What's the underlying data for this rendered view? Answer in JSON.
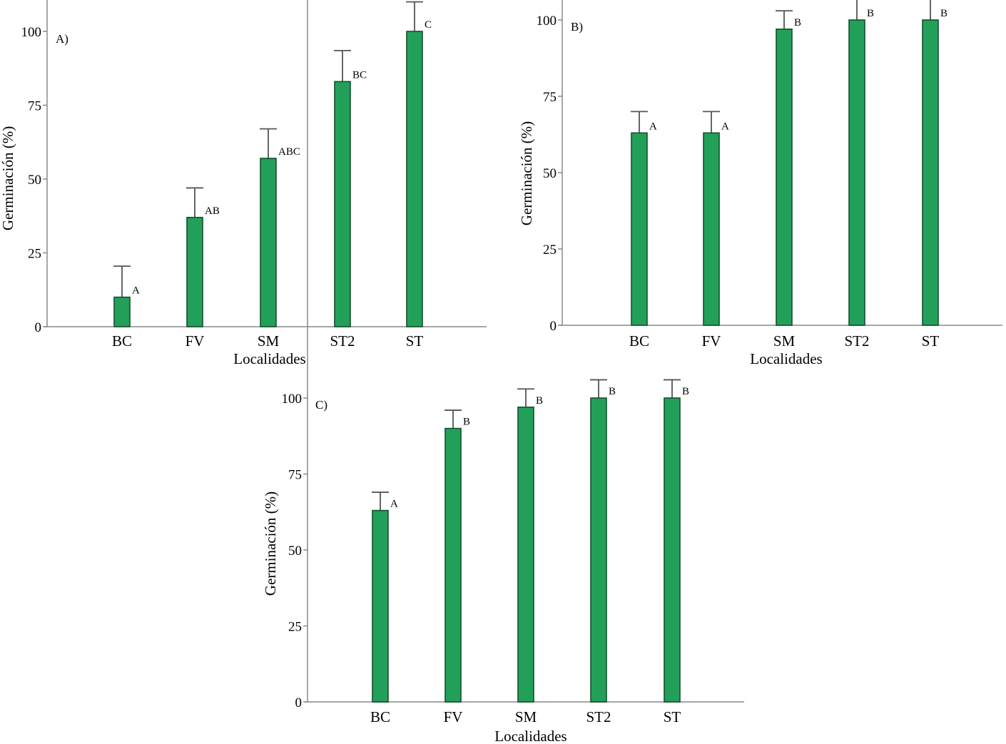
{
  "y_axis_label": "Germinación (%)",
  "x_axis_label": "Localidades",
  "colors": {
    "bar_fill": "#22a05a",
    "bar_stroke": "#14502c",
    "error_bar": "#555555",
    "axis": "#888888"
  },
  "chart_data": [
    {
      "type": "bar",
      "panel": "A)",
      "categories": [
        "BC",
        "FV",
        "SM",
        "ST2",
        "ST"
      ],
      "values": [
        10,
        37,
        57,
        83,
        100
      ],
      "error_upper": [
        20.5,
        47,
        67,
        93.5,
        110
      ],
      "significance": [
        "A",
        "AB",
        "ABC",
        "BC",
        "C"
      ],
      "xlabel": "Localidades",
      "ylabel": "Germinación (%)",
      "yticks": [
        0,
        25,
        50,
        75,
        100
      ],
      "ylim": [
        0,
        100
      ],
      "grid": false
    },
    {
      "type": "bar",
      "panel": "B)",
      "categories": [
        "BC",
        "FV",
        "SM",
        "ST2",
        "ST"
      ],
      "values": [
        63,
        63,
        97,
        100,
        100
      ],
      "error_upper": [
        70,
        70,
        103,
        107,
        107
      ],
      "significance": [
        "A",
        "A",
        "B",
        "B",
        "B"
      ],
      "xlabel": "Localidades",
      "ylabel": "Germinación (%)",
      "yticks": [
        0,
        25,
        50,
        75,
        100
      ],
      "ylim": [
        0,
        100
      ],
      "grid": false
    },
    {
      "type": "bar",
      "panel": "C)",
      "categories": [
        "BC",
        "FV",
        "SM",
        "ST2",
        "ST"
      ],
      "values": [
        63,
        90,
        97,
        100,
        100
      ],
      "error_upper": [
        69,
        96,
        103,
        106,
        106
      ],
      "significance": [
        "A",
        "B",
        "B",
        "B",
        "B"
      ],
      "xlabel": "Localidades",
      "ylabel": "Germinación (%)",
      "yticks": [
        0,
        25,
        50,
        75,
        100
      ],
      "ylim": [
        0,
        100
      ],
      "grid": false
    }
  ]
}
